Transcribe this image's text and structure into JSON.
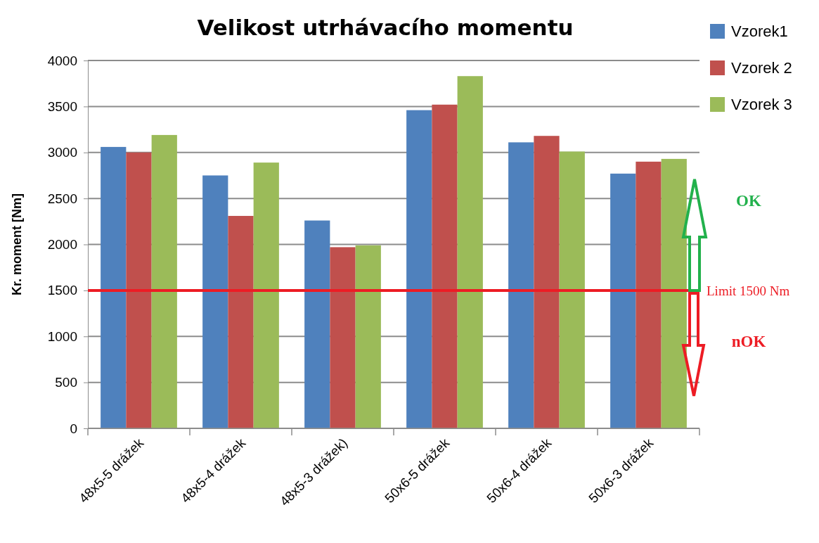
{
  "chart_data": {
    "type": "bar",
    "title": "Velikost utrhávacího momentu",
    "ylabel": "Kr. moment [Nm]",
    "categories": [
      "48x5-5 drážek",
      "48x5-4 drážek",
      "48x5-3 drážek)",
      "50x6-5 drážek",
      "50x6-4 drážek",
      "50x6-3 drážek"
    ],
    "series": [
      {
        "name": "Vzorek1",
        "color": "#4f81bd",
        "values": [
          3060,
          2750,
          2260,
          3460,
          3110,
          2770
        ]
      },
      {
        "name": "Vzorek 2",
        "color": "#c0504d",
        "values": [
          3000,
          2310,
          1970,
          3520,
          3180,
          2900
        ]
      },
      {
        "name": "Vzorek 3",
        "color": "#9bbb59",
        "values": [
          3190,
          2890,
          1990,
          3830,
          3010,
          2930
        ]
      }
    ],
    "ylim": [
      0,
      4000
    ],
    "yticks": [
      0,
      500,
      1000,
      1500,
      2000,
      2500,
      3000,
      3500,
      4000
    ],
    "grid": "y",
    "legend": "top right",
    "ref_lines": [
      {
        "axis": "y",
        "value": 1500,
        "label": "Limit 1500 Nm",
        "color": "#ed1c24"
      }
    ],
    "annotations": [
      "OK",
      "nOK"
    ]
  }
}
